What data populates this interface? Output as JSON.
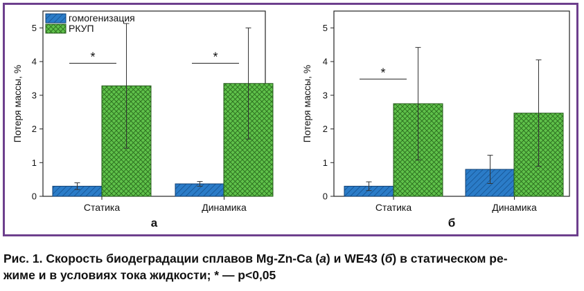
{
  "chart_data": [
    {
      "type": "bar",
      "panel_label": "а",
      "categories": [
        "Статика",
        "Динамика"
      ],
      "ylabel": "Потеря массы, %",
      "ylim": [
        0,
        5.5
      ],
      "yticks": [
        0,
        1,
        2,
        3,
        4,
        5
      ],
      "legend": {
        "placement": "top-left",
        "entries": [
          "гомогенизация",
          "РКУП"
        ]
      },
      "series": [
        {
          "name": "гомогенизация",
          "color": "#2b7cc8",
          "values": [
            0.3,
            0.37
          ],
          "errors": [
            0.1,
            0.07
          ]
        },
        {
          "name": "РКУП",
          "color": "#5fc14a",
          "values": [
            3.28,
            3.35
          ],
          "errors": [
            1.85,
            1.65
          ]
        }
      ],
      "significance": [
        {
          "category_index": 0,
          "label": "*",
          "y": 3.95
        },
        {
          "category_index": 1,
          "label": "*",
          "y": 3.95
        }
      ],
      "grid": false
    },
    {
      "type": "bar",
      "panel_label": "б",
      "categories": [
        "Статика",
        "Динамика"
      ],
      "ylabel": "Потеря массы, %",
      "ylim": [
        0,
        5.5
      ],
      "yticks": [
        0,
        1,
        2,
        3,
        4,
        5
      ],
      "series": [
        {
          "name": "гомогенизация",
          "color": "#2b7cc8",
          "values": [
            0.3,
            0.8
          ],
          "errors": [
            0.13,
            0.42
          ]
        },
        {
          "name": "РКУП",
          "color": "#5fc14a",
          "values": [
            2.75,
            2.47
          ],
          "errors": [
            1.67,
            1.58
          ]
        }
      ],
      "significance": [
        {
          "category_index": 0,
          "label": "*",
          "y": 3.48
        }
      ],
      "grid": false
    }
  ],
  "caption": {
    "prefix": "Рис. 1. Скорость биодеградации сплавов Mg-Zn-Ca (",
    "ital_a": "а",
    "mid": ") и WE43 (",
    "ital_b": "б",
    "suffix": ") в статическом ре-",
    "line2": "жиме и в условиях тока жидкости; * — p<0,05"
  },
  "colors": {
    "frame": "#6d3f8d",
    "blue": "#2b7cc8",
    "green": "#5fc14a"
  }
}
